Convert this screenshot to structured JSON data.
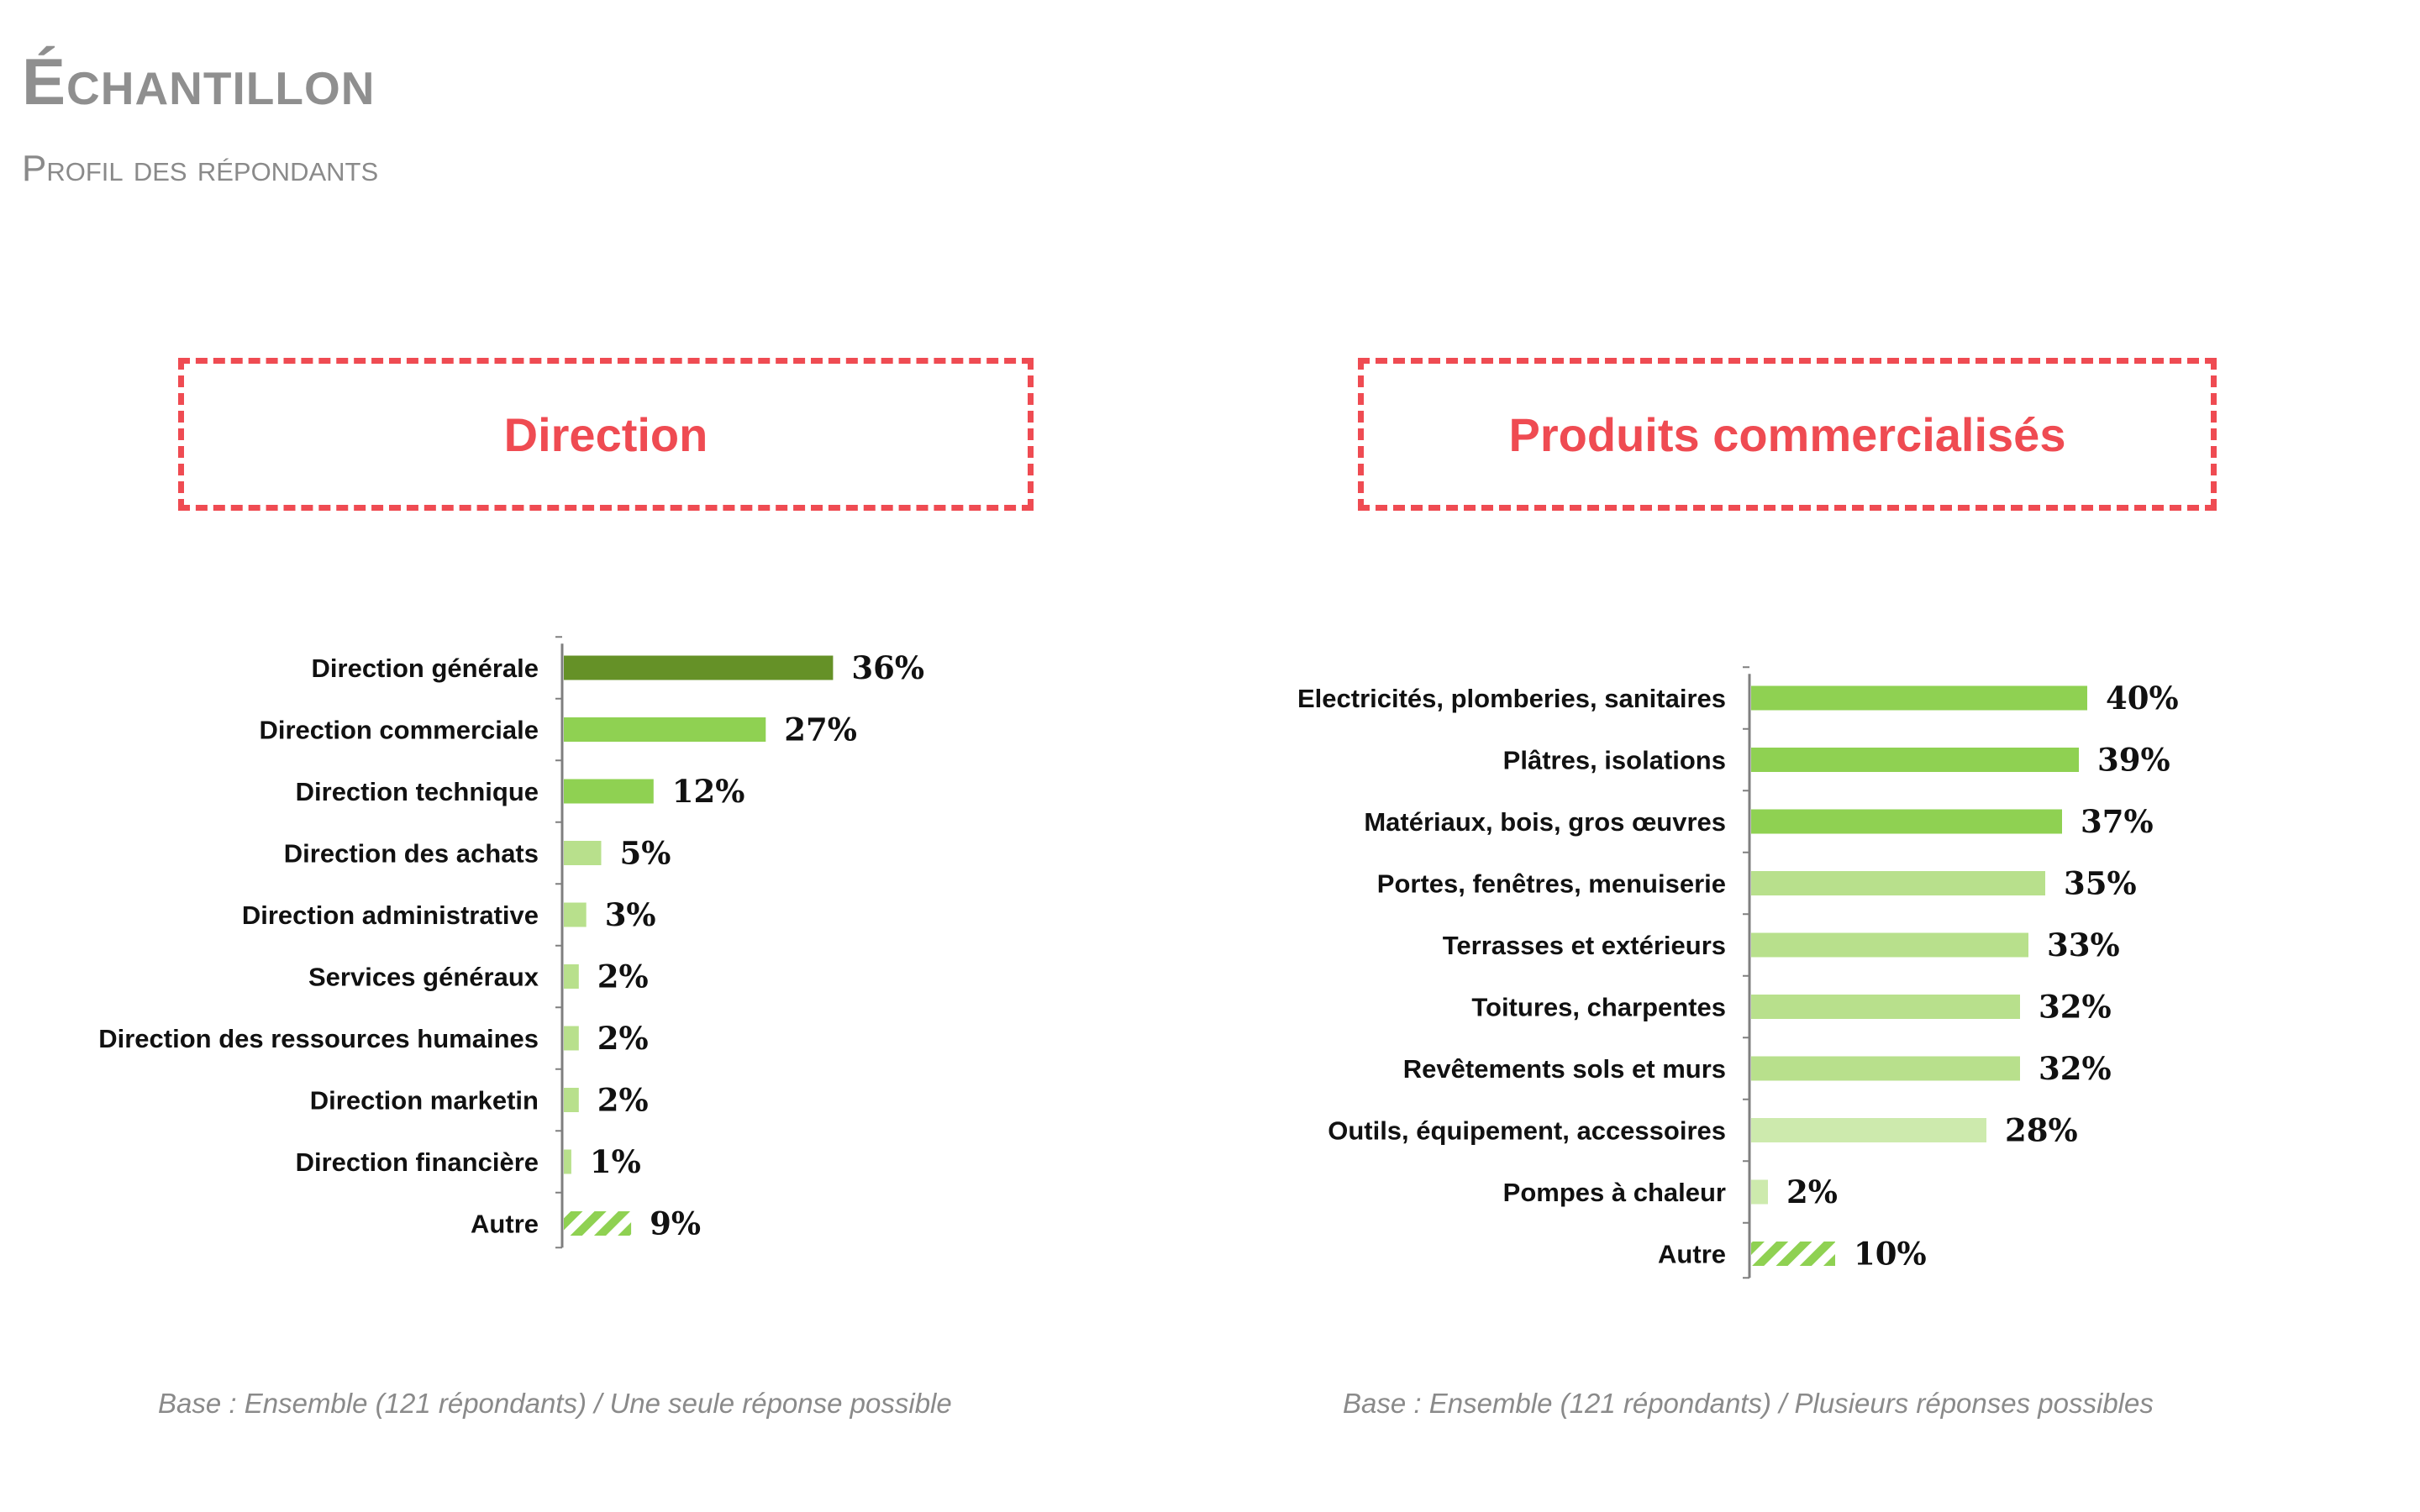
{
  "header": {
    "title": "Échantillon",
    "subtitle": "Profil des répondants"
  },
  "colors": {
    "accent_red": "#ef4b52",
    "bar_dark": "#659127",
    "bar_medium": "#8fd152",
    "bar_light": "#b8e08c",
    "bar_lighter": "#cdeaad",
    "hatch": "#8fd152"
  },
  "chart_data": [
    {
      "type": "bar",
      "orientation": "horizontal",
      "title": "Direction",
      "categories": [
        "Direction générale",
        "Direction commerciale",
        "Direction technique",
        "Direction des achats",
        "Direction administrative",
        "Services généraux",
        "Direction des ressources humaines",
        "Direction marketin",
        "Direction financière",
        "Autre"
      ],
      "values": [
        36,
        27,
        12,
        5,
        3,
        2,
        2,
        2,
        1,
        9
      ],
      "value_labels": [
        "36%",
        "27%",
        "12%",
        "5%",
        "3%",
        "2%",
        "2%",
        "2%",
        "1%",
        "9%"
      ],
      "bar_styles": [
        "dark",
        "medium",
        "medium",
        "light",
        "light",
        "light",
        "light",
        "light",
        "light",
        "hatch"
      ],
      "xlim": [
        0,
        100
      ],
      "note": "Base : Ensemble (121 répondants) / Une seule réponse possible"
    },
    {
      "type": "bar",
      "orientation": "horizontal",
      "title": "Produits commercialisés",
      "categories": [
        "Electricités, plomberies, sanitaires",
        "Plâtres, isolations",
        "Matériaux, bois, gros œuvres",
        "Portes, fenêtres, menuiserie",
        "Terrasses et extérieurs",
        "Toitures, charpentes",
        "Revêtements sols et murs",
        "Outils, équipement, accessoires",
        "Pompes à chaleur",
        "Autre"
      ],
      "values": [
        40,
        39,
        37,
        35,
        33,
        32,
        32,
        28,
        2,
        10
      ],
      "value_labels": [
        "40%",
        "39%",
        "37%",
        "35%",
        "33%",
        "32%",
        "32%",
        "28%",
        "2%",
        "10%"
      ],
      "bar_styles": [
        "medium",
        "medium",
        "medium",
        "light",
        "light",
        "light",
        "light",
        "lighter",
        "lighter",
        "hatch"
      ],
      "xlim": [
        0,
        100
      ],
      "note": "Base : Ensemble (121 répondants) / Plusieurs réponses possibles"
    }
  ]
}
